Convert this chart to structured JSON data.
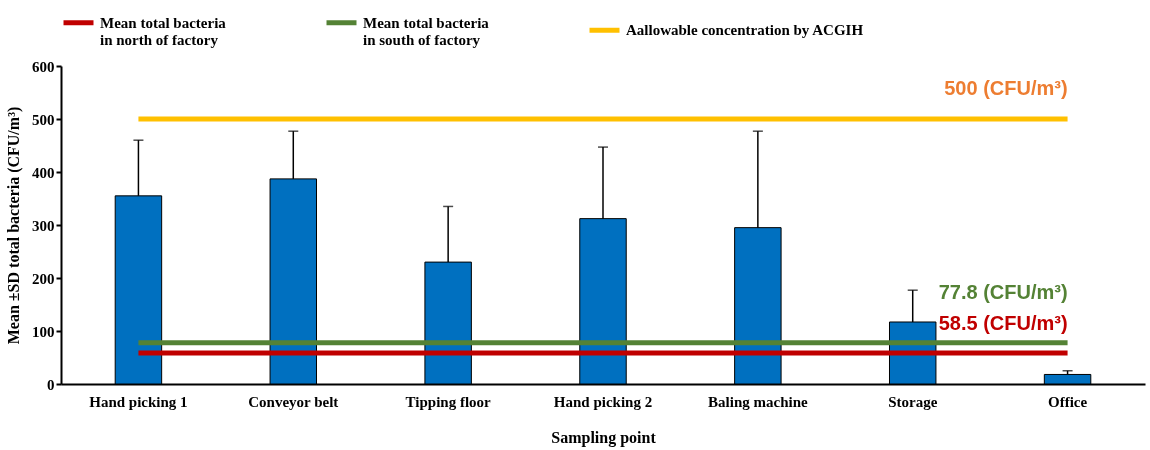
{
  "chart_data": {
    "type": "bar",
    "xlabel": "Sampling point",
    "ylabel": "Mean ±SD total bacteria (CFU/m³)",
    "categories": [
      "Hand picking 1",
      "Conveyor belt",
      "Tipping floor",
      "Hand picking 2",
      "Baling machine",
      "Storage",
      "Office"
    ],
    "values": [
      355,
      387,
      230,
      312,
      295,
      117,
      18
    ],
    "errors": [
      [
        355,
        460
      ],
      [
        387,
        477
      ],
      [
        230,
        335
      ],
      [
        312,
        447
      ],
      [
        295,
        477
      ],
      [
        117,
        177
      ],
      [
        18,
        25
      ]
    ],
    "color": "#0070c0",
    "series": [
      {
        "type": "line",
        "name": "Mean total bacteria\nin north of factory",
        "color": "#c00000",
        "values": [
          58.5,
          58.5,
          58.5,
          58.5,
          58.5,
          58.5,
          58.5
        ]
      },
      {
        "type": "line",
        "name": "Mean total bacteria\nin south of factory",
        "color": "#548235",
        "values": [
          77.8,
          77.8,
          77.8,
          77.8,
          77.8,
          77.8,
          77.8
        ]
      },
      {
        "type": "line",
        "name": "Aallowable concentration by ACGIH",
        "color": "#ffc000",
        "values": [
          500,
          500,
          500,
          500,
          500,
          500,
          500
        ]
      }
    ],
    "annotations": [
      {
        "text": "500 (CFU/m³)",
        "x": "Office",
        "y": 500
      },
      {
        "text": "77.8 (CFU/m³)",
        "x": "Office",
        "y": 77.8
      },
      {
        "text": "58.5 (CFU/m³)",
        "x": "Office",
        "y": 58.5
      }
    ],
    "ylim": [
      0,
      600
    ],
    "yticks": [
      0,
      100,
      200,
      300,
      400,
      500,
      600
    ],
    "grid": false,
    "legend": "top"
  }
}
